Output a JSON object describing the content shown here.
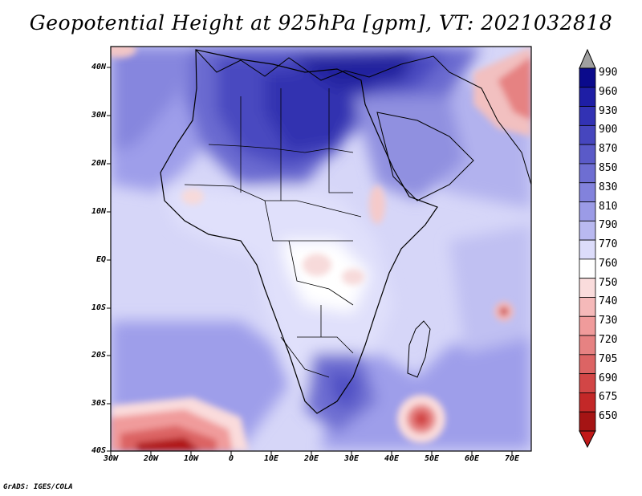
{
  "title": "Geopotential Height at 925hPa [gpm], VT: 2021032818",
  "credit": "GrADS: IGES/COLA",
  "map": {
    "lat_labels": [
      "40N",
      "30N",
      "20N",
      "10N",
      "EQ",
      "10S",
      "20S",
      "30S",
      "40S"
    ],
    "lon_labels": [
      "30W",
      "20W",
      "10W",
      "0",
      "10E",
      "20E",
      "30E",
      "40E",
      "50E",
      "60E",
      "70E"
    ],
    "extent": {
      "lon_min": -30,
      "lon_max": 75,
      "lat_min": -40,
      "lat_max": 45
    }
  },
  "colorbar": {
    "levels": [
      "990",
      "960",
      "930",
      "900",
      "870",
      "850",
      "830",
      "810",
      "790",
      "770",
      "760",
      "750",
      "740",
      "730",
      "720",
      "705",
      "690",
      "675",
      "650"
    ],
    "colors": [
      "#0a0a8c",
      "#1e1ea5",
      "#3232b4",
      "#4646be",
      "#5a5ac8",
      "#6e6ed2",
      "#8282dc",
      "#9b9be6",
      "#b9b9f0",
      "#dcdcfa",
      "#ffffff",
      "#fadcdc",
      "#f5b9b9",
      "#f09b9b",
      "#e68282",
      "#dc6464",
      "#d24646",
      "#c32828",
      "#a51414"
    ],
    "top_arrow_color": "#a0a0a0",
    "bottom_arrow_color": "#c01818"
  }
}
